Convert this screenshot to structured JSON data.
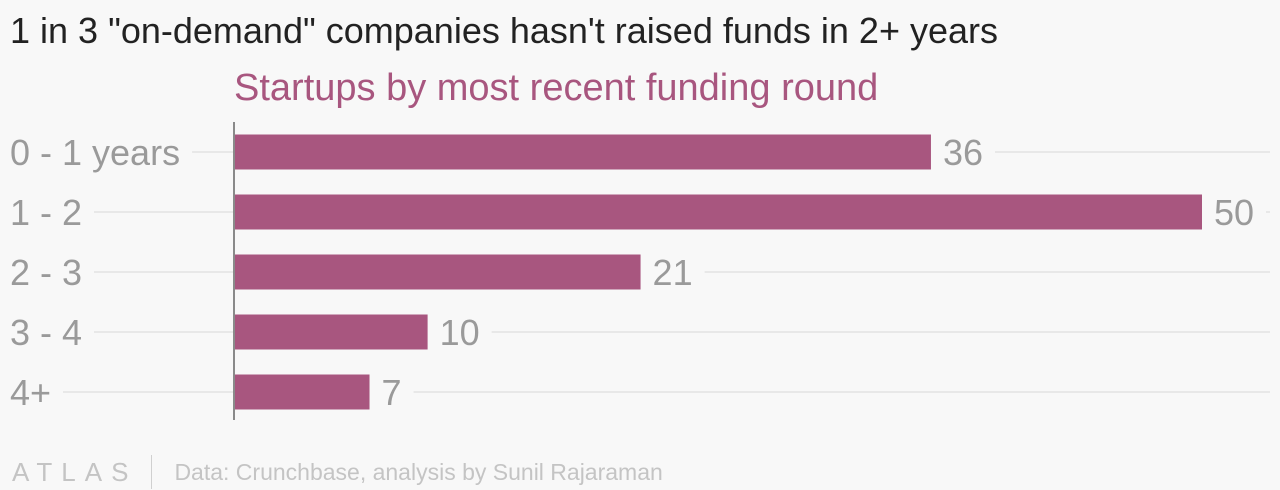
{
  "title": "1 in 3 \"on-demand\" companies hasn't raised funds in 2+ years",
  "chart_data": {
    "type": "bar",
    "orientation": "horizontal",
    "subtitle": "Startups by most recent funding round",
    "categories": [
      "0 - 1 years",
      "1 - 2",
      "2 - 3",
      "3 - 4",
      "4+"
    ],
    "values": [
      36,
      50,
      21,
      10,
      7
    ],
    "xlim": [
      0,
      50
    ],
    "grid": true,
    "bar_color": "#a8567f",
    "subtitle_color": "#a8567f"
  },
  "footer": {
    "logo": "ATLAS",
    "source": "Data: Crunchbase, analysis by Sunil Rajaraman"
  }
}
